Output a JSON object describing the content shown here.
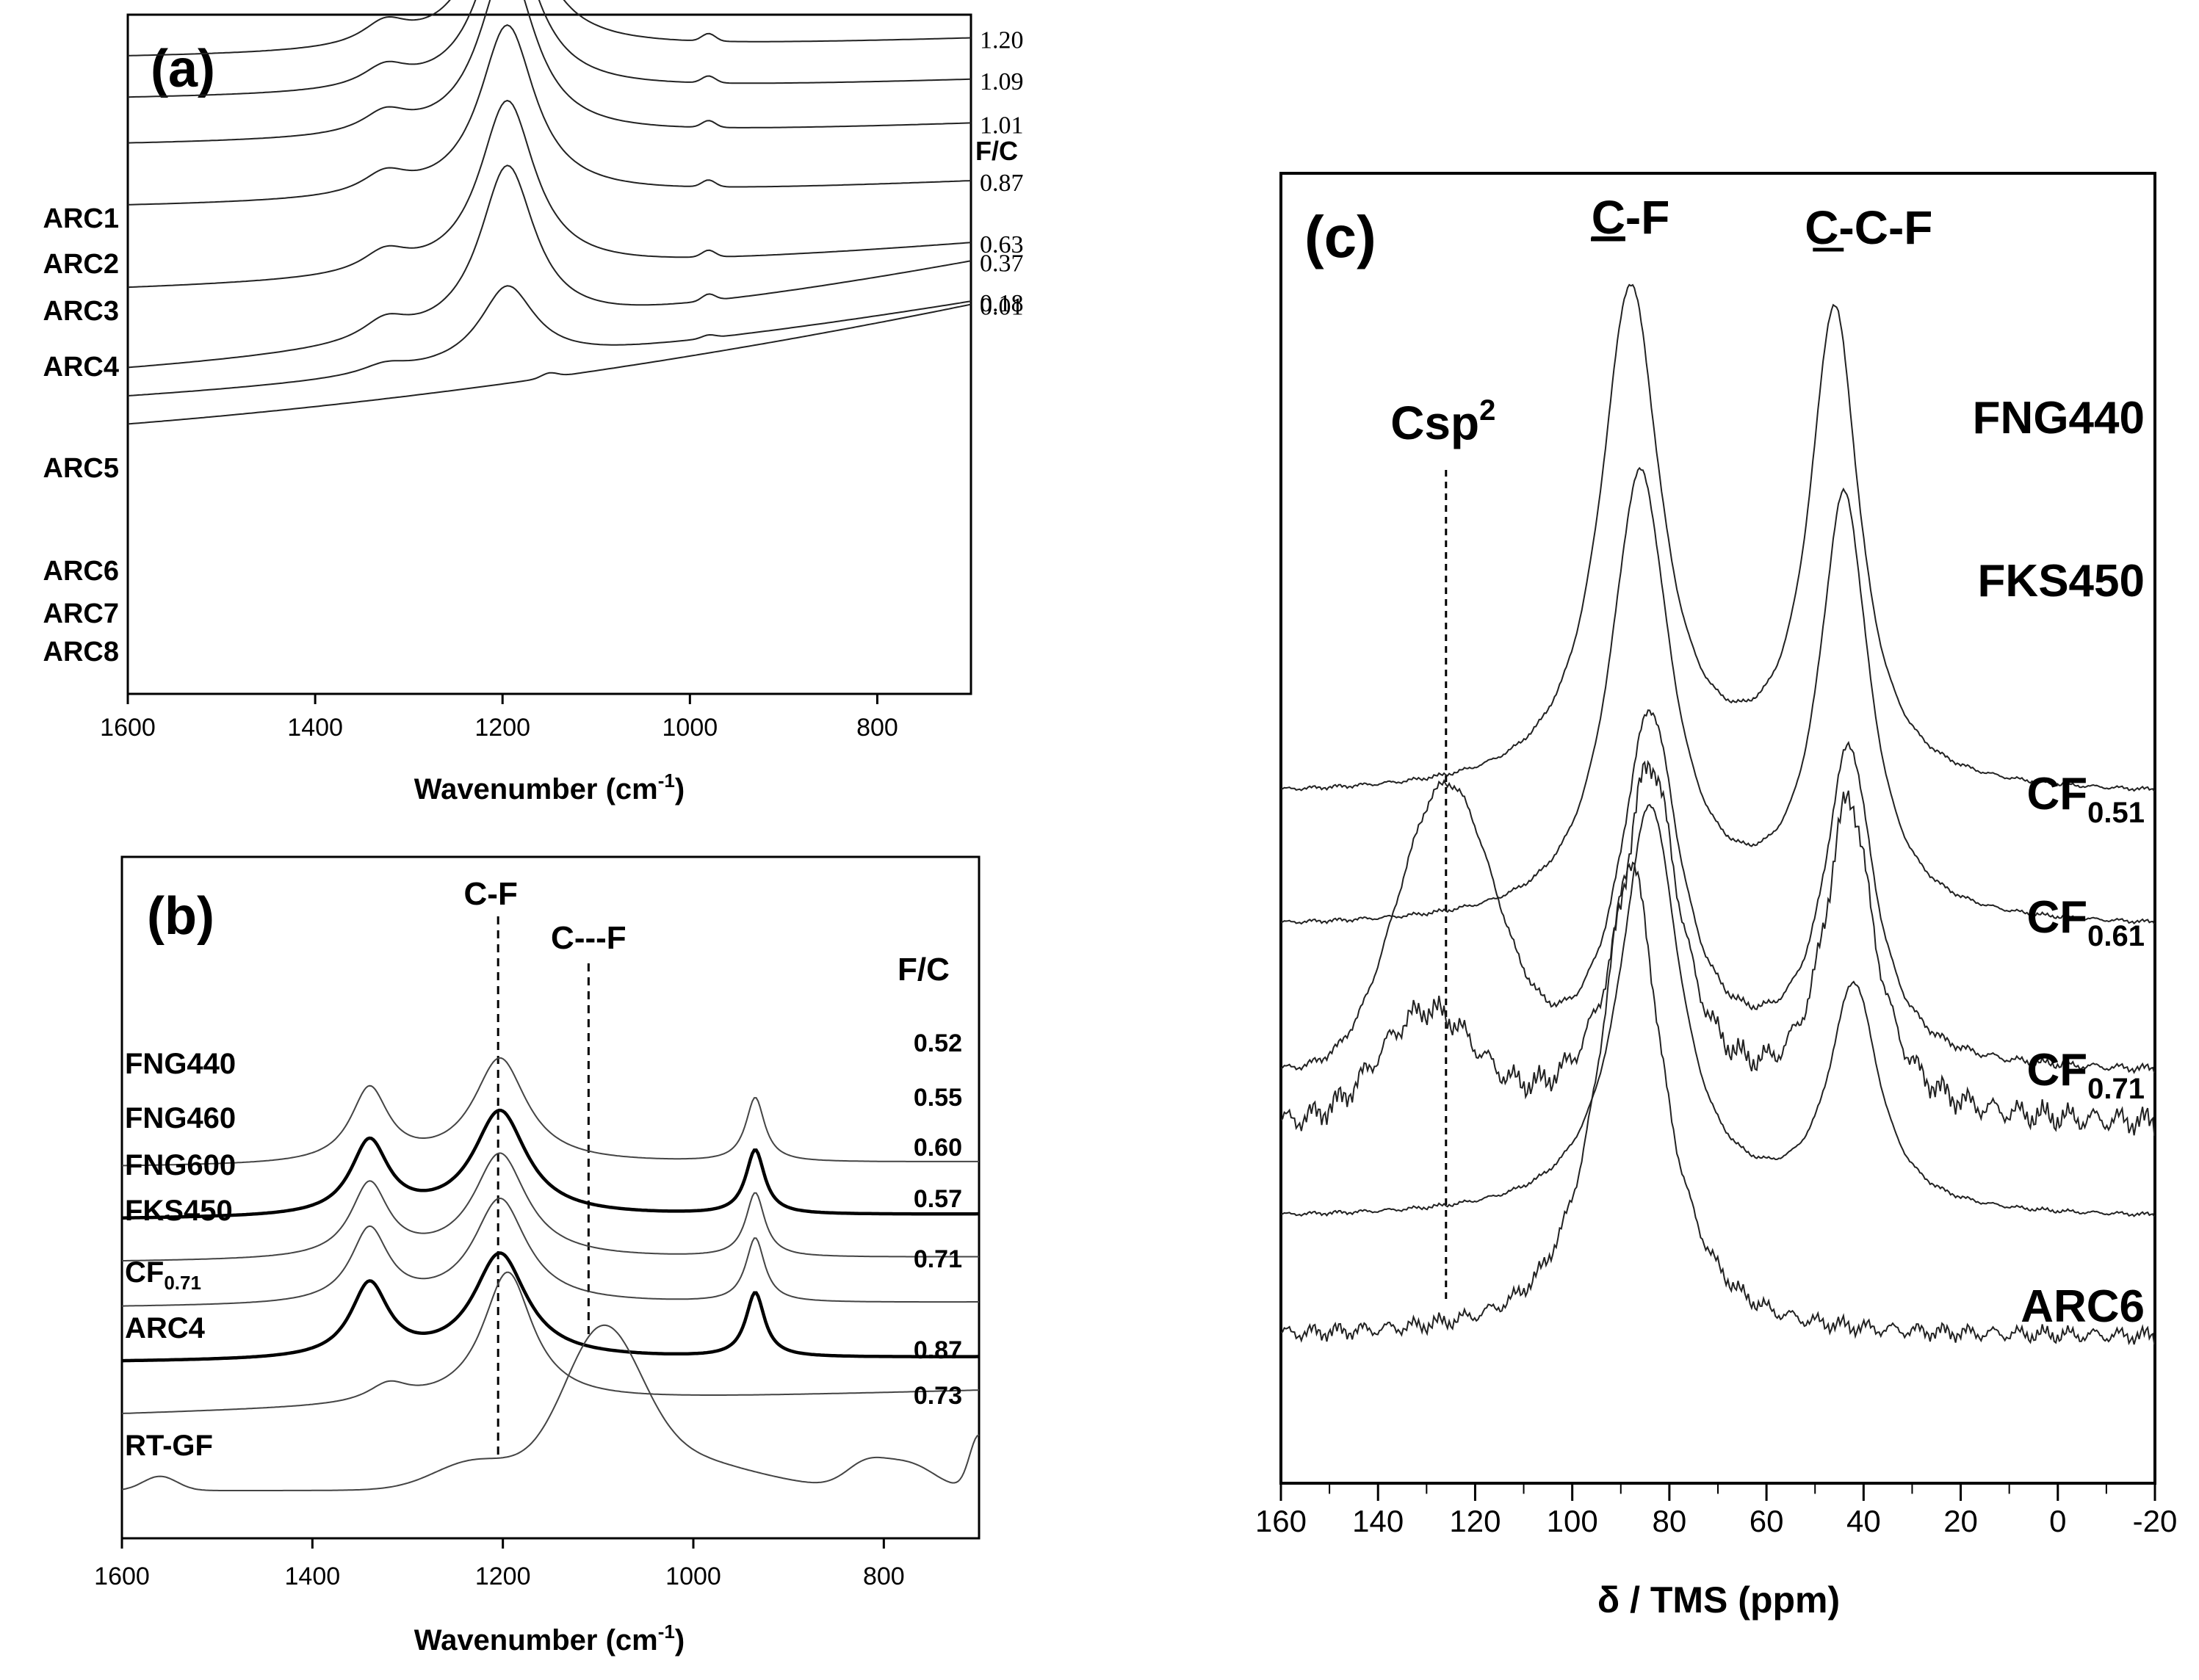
{
  "chart_data": [
    {
      "panel": "a",
      "type": "line",
      "panel_label": "(a)",
      "xlabel_main": "Wavenumber (cm",
      "xlabel_sup": "-1",
      "xlabel_end": ")",
      "xlim": [
        1600,
        700
      ],
      "x_ticks": [
        "1600",
        "1400",
        "1200",
        "1000",
        "800"
      ],
      "x_tick_values": [
        1600,
        1400,
        1200,
        1000,
        800
      ],
      "ratio_header": "F/C",
      "series": [
        {
          "name": "ARC1",
          "ratio": "1.20",
          "offset": 28.0,
          "slope": 0.9,
          "peak": 16.5
        },
        {
          "name": "ARC2",
          "ratio": "1.09",
          "offset": 24.4,
          "slope": 0.9,
          "peak": 15.0
        },
        {
          "name": "ARC3",
          "ratio": "1.01",
          "offset": 20.4,
          "slope": 1.0,
          "peak": 15.0
        },
        {
          "name": "ARC4",
          "ratio": "0.87",
          "offset": 15.0,
          "slope": 1.2,
          "peak": 15.0
        },
        {
          "name": "ARC5",
          "ratio": "0.63",
          "offset": 7.8,
          "slope": 2.2,
          "peak": 15.0
        },
        {
          "name": "ARC6",
          "ratio": "0.37",
          "offset": 0.8,
          "slope": 5.2,
          "peak": 14.5
        },
        {
          "name": "ARC7",
          "ratio": "0.18",
          "offset": -1.6,
          "slope": 4.6,
          "peak": 6.8
        },
        {
          "name": "ARC8",
          "ratio": "0.01",
          "offset": -4.0,
          "slope": 5.8,
          "peak": 0
        }
      ]
    },
    {
      "panel": "b",
      "type": "line",
      "panel_label": "(b)",
      "xlabel_main": "Wavenumber (cm",
      "xlabel_sup": "-1",
      "xlabel_end": ")",
      "xlim": [
        1600,
        700
      ],
      "x_ticks": [
        "1600",
        "1400",
        "1200",
        "1000",
        "800"
      ],
      "x_tick_values": [
        1600,
        1400,
        1200,
        1000,
        800
      ],
      "ratio_header": "F/C",
      "annotations": [
        {
          "text": "C-F",
          "x": 1205
        },
        {
          "text": "C---F",
          "x": 1110
        }
      ],
      "series": [
        {
          "name": "FNG440",
          "ratio": "0.52",
          "offset": 27.2,
          "kind": "fluorographite",
          "bold": false
        },
        {
          "name": "FNG460",
          "ratio": "0.55",
          "offset": 22.8,
          "kind": "fluorographite",
          "bold": true
        },
        {
          "name": "FNG600",
          "ratio": "0.60",
          "offset": 19.2,
          "kind": "fluorographite",
          "bold": false
        },
        {
          "name": "FKS450",
          "ratio": "0.57",
          "offset": 15.4,
          "kind": "fluorographite",
          "bold": false
        },
        {
          "name": "CF",
          "name_sub": "0.71",
          "ratio": "0.71",
          "offset": 10.8,
          "kind": "fluorographite",
          "bold": true
        },
        {
          "name": "ARC4",
          "ratio": "0.87",
          "offset": 6.4,
          "kind": "arc",
          "bold": false
        },
        {
          "name": "RT-GF",
          "ratio": "0.73",
          "offset": 0,
          "kind": "rtgf",
          "bold": false
        }
      ]
    },
    {
      "panel": "c",
      "type": "line",
      "panel_label": "(c)",
      "xlabel": "δ / TMS (ppm)",
      "xlim": [
        160,
        -20
      ],
      "x_ticks": [
        "160",
        "140",
        "120",
        "100",
        "80",
        "60",
        "40",
        "20",
        "0",
        "-20"
      ],
      "x_tick_values": [
        160,
        140,
        120,
        100,
        80,
        60,
        40,
        20,
        0,
        -20
      ],
      "annotations": [
        {
          "text_pre": "",
          "text_u": "C",
          "text_post": "-F",
          "x": 88
        },
        {
          "text_pre": "",
          "text_u": "C",
          "text_post": "-C-F",
          "x": 45
        },
        {
          "text_pre": "Csp",
          "text_sup": "2",
          "x": 126
        }
      ],
      "series": [
        {
          "name": "FNG440",
          "offset": 84,
          "p1": [
            88,
            76
          ],
          "p2": [
            46,
            72
          ],
          "p3": null,
          "noise": 0.4
        },
        {
          "name": "FKS450",
          "offset": 64,
          "p1": [
            86,
            68
          ],
          "p2": [
            44,
            64
          ],
          "p3": null,
          "noise": 0.4
        },
        {
          "name": "CF",
          "name_sub": "0.51",
          "offset": 42,
          "p1": [
            84,
            54
          ],
          "p2": [
            43,
            48
          ],
          "p3": [
            126,
            42
          ],
          "noise": 0.8
        },
        {
          "name": "CF",
          "name_sub": "0.61",
          "offset": 34,
          "p1": [
            84,
            54
          ],
          "p2": [
            43,
            48
          ],
          "p3": [
            130,
            16
          ],
          "noise": 2.6
        },
        {
          "name": "CF",
          "name_sub": "0.71",
          "offset": 20,
          "p1": [
            84,
            62
          ],
          "p2": [
            42,
            34
          ],
          "p3": null,
          "noise": 0.4
        },
        {
          "name": "ARC6",
          "offset": 2,
          "p1": [
            88,
            66
          ],
          "p2": null,
          "p3": null,
          "noise": 1.6
        }
      ]
    }
  ]
}
